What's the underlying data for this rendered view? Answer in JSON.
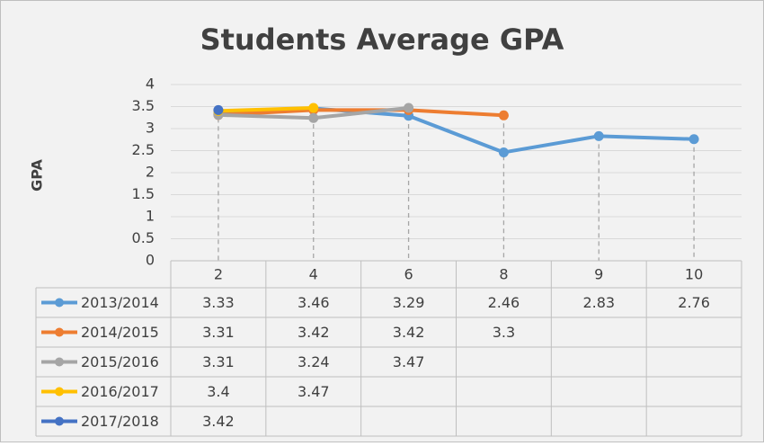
{
  "chart_data": {
    "type": "line",
    "title": "Students Average GPA",
    "y_label": "GPA",
    "categories": [
      "2",
      "4",
      "6",
      "8",
      "9",
      "10"
    ],
    "series": [
      {
        "name": "2013/2014",
        "color": "#5b9bd5",
        "values": [
          3.33,
          3.46,
          3.29,
          2.46,
          2.83,
          2.76
        ]
      },
      {
        "name": "2014/2015",
        "color": "#ed7d31",
        "values": [
          3.31,
          3.42,
          3.42,
          3.3,
          null,
          null
        ]
      },
      {
        "name": "2015/2016",
        "color": "#a5a5a5",
        "values": [
          3.31,
          3.24,
          3.47,
          null,
          null,
          null
        ]
      },
      {
        "name": "2016/2017",
        "color": "#ffc000",
        "values": [
          3.4,
          3.47,
          null,
          null,
          null,
          null
        ]
      },
      {
        "name": "2017/2018",
        "color": "#4472c4",
        "values": [
          3.42,
          null,
          null,
          null,
          null,
          null
        ]
      }
    ],
    "ylim": [
      0,
      4
    ],
    "yticks": [
      0,
      0.5,
      1,
      1.5,
      2,
      2.5,
      3,
      3.5,
      4
    ],
    "grid": true,
    "data_table": true
  }
}
